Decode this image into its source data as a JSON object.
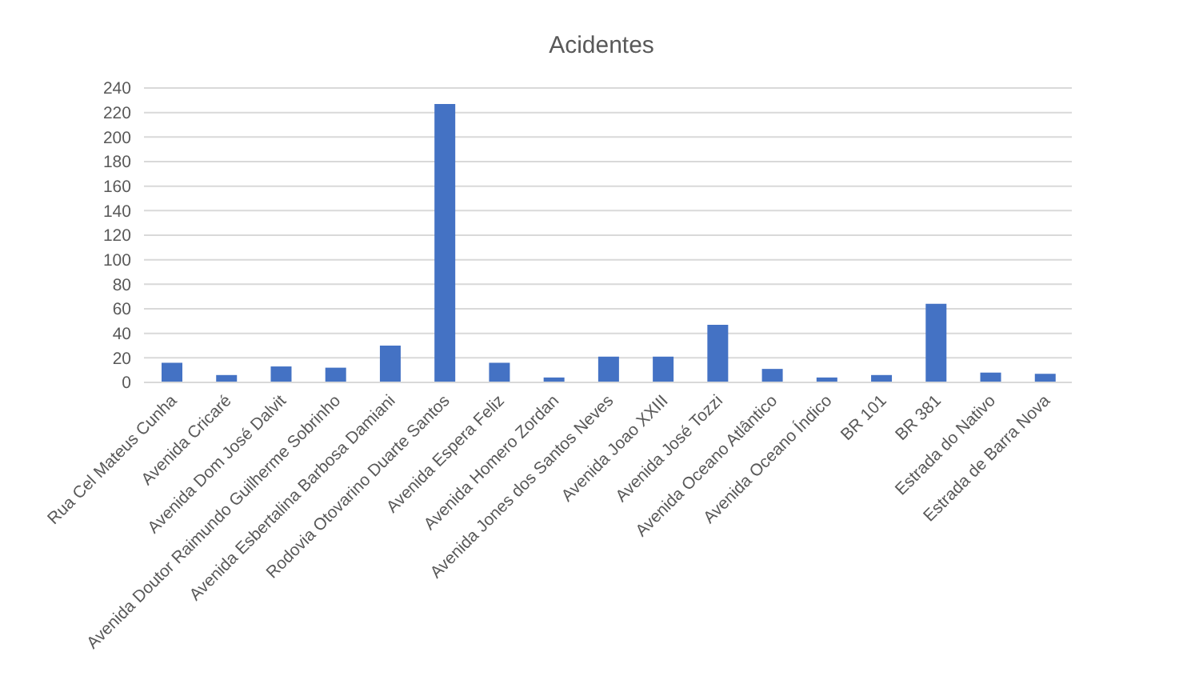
{
  "chart_data": {
    "type": "bar",
    "title": "Acidentes",
    "categories": [
      "Rua Cel Mateus Cunha",
      "Avenida Cricaré",
      "Avenida Dom José Dalvit",
      "Avenida Doutor Raimundo Guilherme Sobrinho",
      "Avenida Esbertalina Barbosa Damiani",
      "Rodovia Otovarino Duarte Santos",
      "Avenida Espera Feliz",
      "Avenida Homero Zordan",
      "Avenida Jones dos Santos Neves",
      "Avenida Joao XXIII",
      "Avenida José Tozzi",
      "Avenida Oceano Atlântico",
      "Avenida Oceano Índico",
      "BR 101",
      "BR 381",
      "Estrada do Nativo",
      "Estrada de Barra Nova"
    ],
    "values": [
      16,
      6,
      13,
      12,
      30,
      227,
      16,
      4,
      21,
      21,
      47,
      11,
      4,
      6,
      64,
      8,
      7
    ],
    "color": "#4472c4",
    "ylim": [
      0,
      240
    ],
    "yticks": [
      0,
      20,
      40,
      60,
      80,
      100,
      120,
      140,
      160,
      180,
      200,
      220,
      240
    ],
    "grid": "y"
  }
}
